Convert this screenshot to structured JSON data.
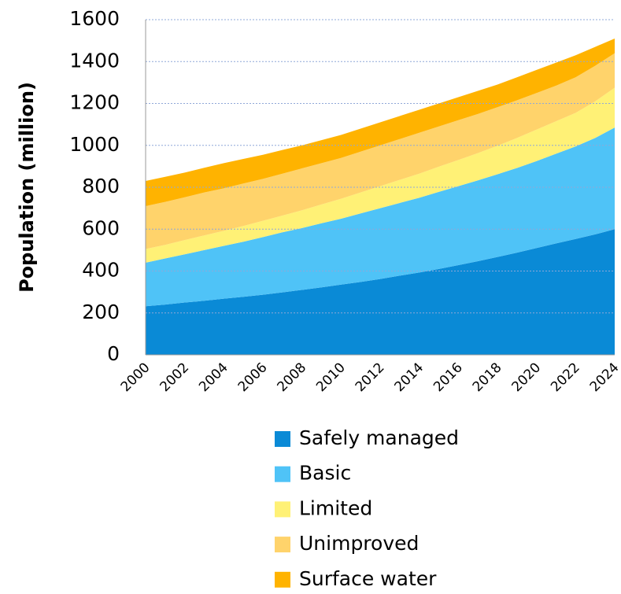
{
  "chart_data": {
    "type": "stacked_area",
    "y_label": "Population (million)",
    "categories": [
      "2000",
      null,
      "2002",
      null,
      "2004",
      null,
      "2006",
      null,
      "2008",
      null,
      "2010",
      null,
      "2012",
      null,
      "2014",
      null,
      "2016",
      null,
      "2018",
      null,
      "2020",
      null,
      "2022",
      null,
      "2024"
    ],
    "series": [
      {
        "name": "Safely managed",
        "color": "#0a8ad6",
        "values": [
          232,
          240,
          250,
          258,
          268,
          277,
          287,
          298,
          310,
          322,
          335,
          348,
          362,
          378,
          393,
          410,
          428,
          447,
          467,
          488,
          510,
          532,
          553,
          575,
          600
        ]
      },
      {
        "name": "Basic",
        "color": "#4fc3f7",
        "values": [
          208,
          220,
          230,
          242,
          252,
          263,
          275,
          287,
          295,
          306,
          315,
          327,
          338,
          347,
          357,
          368,
          377,
          386,
          395,
          404,
          415,
          428,
          442,
          460,
          485
        ]
      },
      {
        "name": "Limited",
        "color": "#fff176",
        "values": [
          65,
          65,
          68,
          70,
          72,
          75,
          78,
          80,
          85,
          90,
          95,
          100,
          105,
          110,
          115,
          120,
          125,
          130,
          136,
          143,
          150,
          155,
          160,
          175,
          190
        ]
      },
      {
        "name": "Unimproved",
        "color": "#ffd36b",
        "values": [
          205,
          205,
          204,
          205,
          203,
          203,
          200,
          200,
          200,
          197,
          195,
          195,
          195,
          195,
          195,
          192,
          190,
          187,
          184,
          180,
          175,
          170,
          170,
          170,
          165
        ]
      },
      {
        "name": "Surface water",
        "color": "#ffb300",
        "values": [
          120,
          120,
          118,
          118,
          120,
          117,
          115,
          113,
          110,
          110,
          110,
          110,
          110,
          110,
          110,
          110,
          110,
          110,
          108,
          110,
          110,
          110,
          105,
          90,
          70
        ]
      }
    ],
    "ylim": [
      0,
      1600
    ],
    "yticks": [
      0,
      200,
      400,
      600,
      800,
      1000,
      1200,
      1400,
      1600
    ],
    "grid": true
  }
}
